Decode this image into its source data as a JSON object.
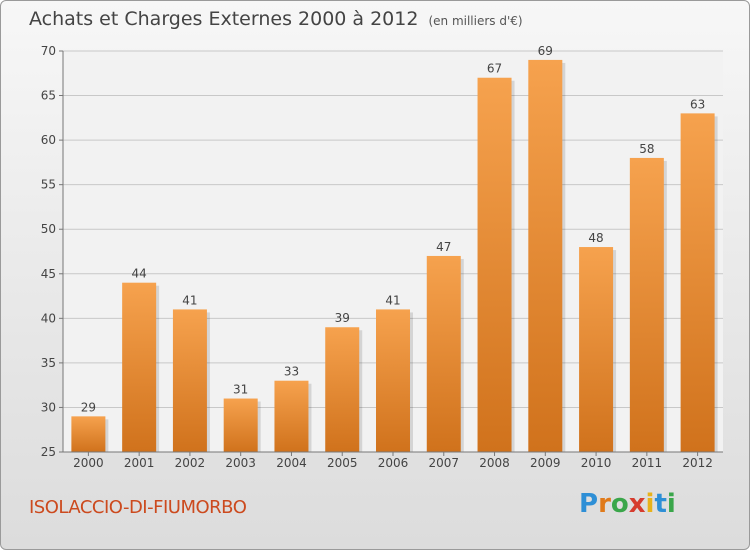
{
  "title": "Achats et Charges Externes 2000 à 2012",
  "unit_note": "(en milliers d'€)",
  "commune": "ISOLACCIO-DI-FIUMORBO",
  "logo": {
    "letters": [
      "P",
      "r",
      "o",
      "x",
      "i",
      "t",
      "i"
    ],
    "colors": [
      "#2e8fd6",
      "#e07a1a",
      "#3aa64a",
      "#d63c2e",
      "#e8b21a",
      "#2e8fd6",
      "#3aa64a"
    ]
  },
  "colors": {
    "bar_top": "#f6a24e",
    "bar_bottom": "#d0721c",
    "grid": "#c8c8c8"
  },
  "chart_data": {
    "type": "bar",
    "categories": [
      "2000",
      "2001",
      "2002",
      "2003",
      "2004",
      "2005",
      "2006",
      "2007",
      "2008",
      "2009",
      "2010",
      "2011",
      "2012"
    ],
    "values": [
      29,
      44,
      41,
      31,
      33,
      39,
      41,
      47,
      67,
      69,
      48,
      58,
      63
    ],
    "ylim": [
      25,
      70
    ],
    "yticks": [
      25,
      30,
      35,
      40,
      45,
      50,
      55,
      60,
      65,
      70
    ],
    "grid": true
  }
}
